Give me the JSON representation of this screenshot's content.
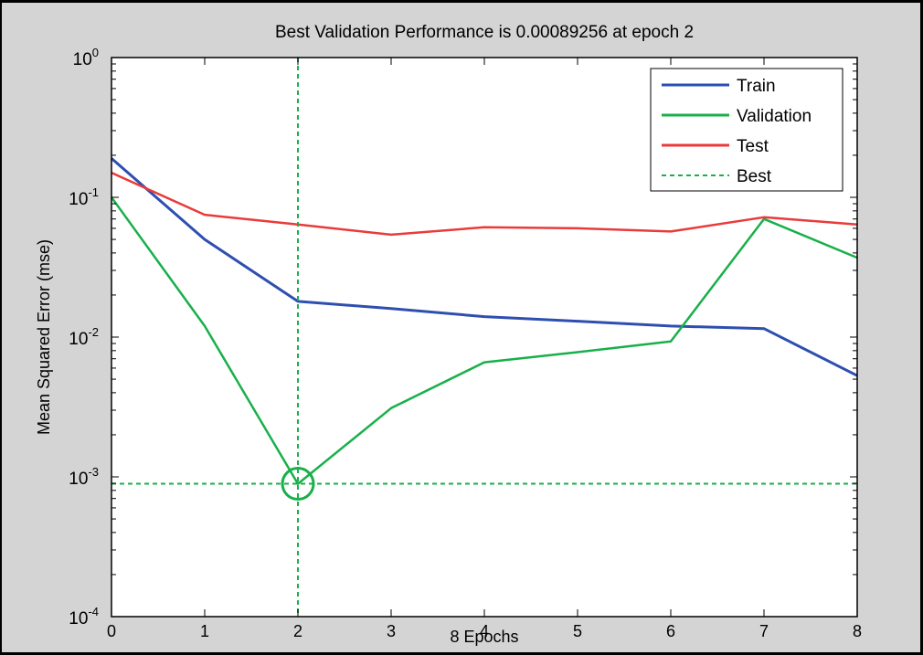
{
  "chart_data": {
    "type": "line",
    "title": "Best Validation Performance is 0.00089256 at epoch 2",
    "xlabel": "8 Epochs",
    "ylabel": "Mean Squared Error  (mse)",
    "xlim": [
      0,
      8
    ],
    "ylim": [
      0.0001,
      1
    ],
    "yscale": "log",
    "x_ticks": [
      "0",
      "1",
      "2",
      "3",
      "4",
      "5",
      "6",
      "7",
      "8"
    ],
    "y_ticks": [
      {
        "value": 1,
        "base": "10",
        "exp": "0"
      },
      {
        "value": 0.1,
        "base": "10",
        "exp": "-1"
      },
      {
        "value": 0.01,
        "base": "10",
        "exp": "-2"
      },
      {
        "value": 0.001,
        "base": "10",
        "exp": "-3"
      },
      {
        "value": 0.0001,
        "base": "10",
        "exp": "-4"
      }
    ],
    "grid": false,
    "legend_position": "top-right",
    "x": [
      0,
      1,
      2,
      3,
      4,
      5,
      6,
      7,
      8
    ],
    "series": [
      {
        "name": "Train",
        "color": "#2e4fb0",
        "style": "solid",
        "values": [
          0.19,
          0.05,
          0.018,
          0.016,
          0.014,
          0.013,
          0.012,
          0.0115,
          0.0053
        ]
      },
      {
        "name": "Validation",
        "color": "#18b04a",
        "style": "solid",
        "values": [
          0.1,
          0.012,
          0.00089256,
          0.0031,
          0.0066,
          0.0078,
          0.0093,
          0.07,
          0.037
        ]
      },
      {
        "name": "Test",
        "color": "#ea3a3a",
        "style": "solid",
        "values": [
          0.15,
          0.075,
          0.064,
          0.054,
          0.061,
          0.06,
          0.057,
          0.072,
          0.064
        ]
      }
    ],
    "best": {
      "name": "Best",
      "color": "#18b04a",
      "style": "dashed",
      "epoch": 2,
      "value": 0.00089256
    }
  }
}
